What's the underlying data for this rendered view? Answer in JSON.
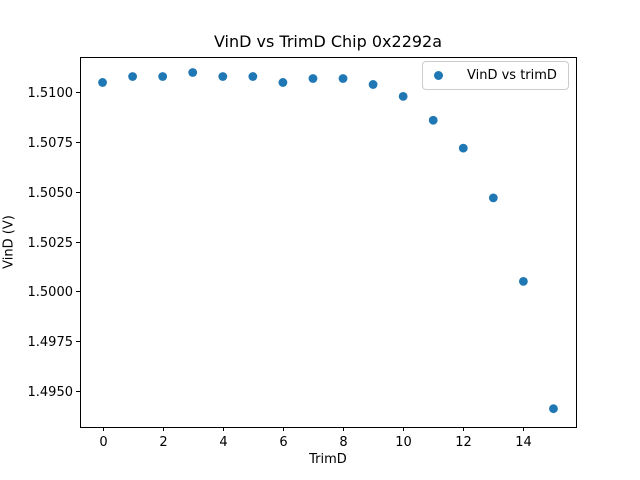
{
  "chart_data": {
    "type": "scatter",
    "title": "VinD vs TrimD Chip 0x2292a",
    "xlabel": "TrimD",
    "ylabel": "VinD (V)",
    "legend": {
      "label": "VinD vs trimD",
      "position": "upper right"
    },
    "marker_color": "#1f77b4",
    "axis_color": "#000000",
    "x": [
      0,
      1,
      2,
      3,
      4,
      5,
      6,
      7,
      8,
      9,
      10,
      11,
      12,
      13,
      14,
      15
    ],
    "y": [
      1.5105,
      1.5108,
      1.5108,
      1.511,
      1.5108,
      1.5108,
      1.5105,
      1.5107,
      1.5107,
      1.5104,
      1.5098,
      1.5086,
      1.5072,
      1.5047,
      1.5005,
      1.4941
    ],
    "xlim": [
      -0.75,
      15.75
    ],
    "ylim": [
      1.49318,
      1.51178
    ],
    "xticks": [
      0,
      2,
      4,
      6,
      8,
      10,
      12,
      14
    ],
    "xtick_labels": [
      "0",
      "2",
      "4",
      "6",
      "8",
      "10",
      "12",
      "14"
    ],
    "yticks": [
      1.51,
      1.5075,
      1.505,
      1.5025,
      1.5,
      1.4975,
      1.495
    ],
    "ytick_labels": [
      "1.5100",
      "1.5075",
      "1.5050",
      "1.5025",
      "1.5000",
      "1.4975",
      "1.4950"
    ],
    "grid": false
  }
}
